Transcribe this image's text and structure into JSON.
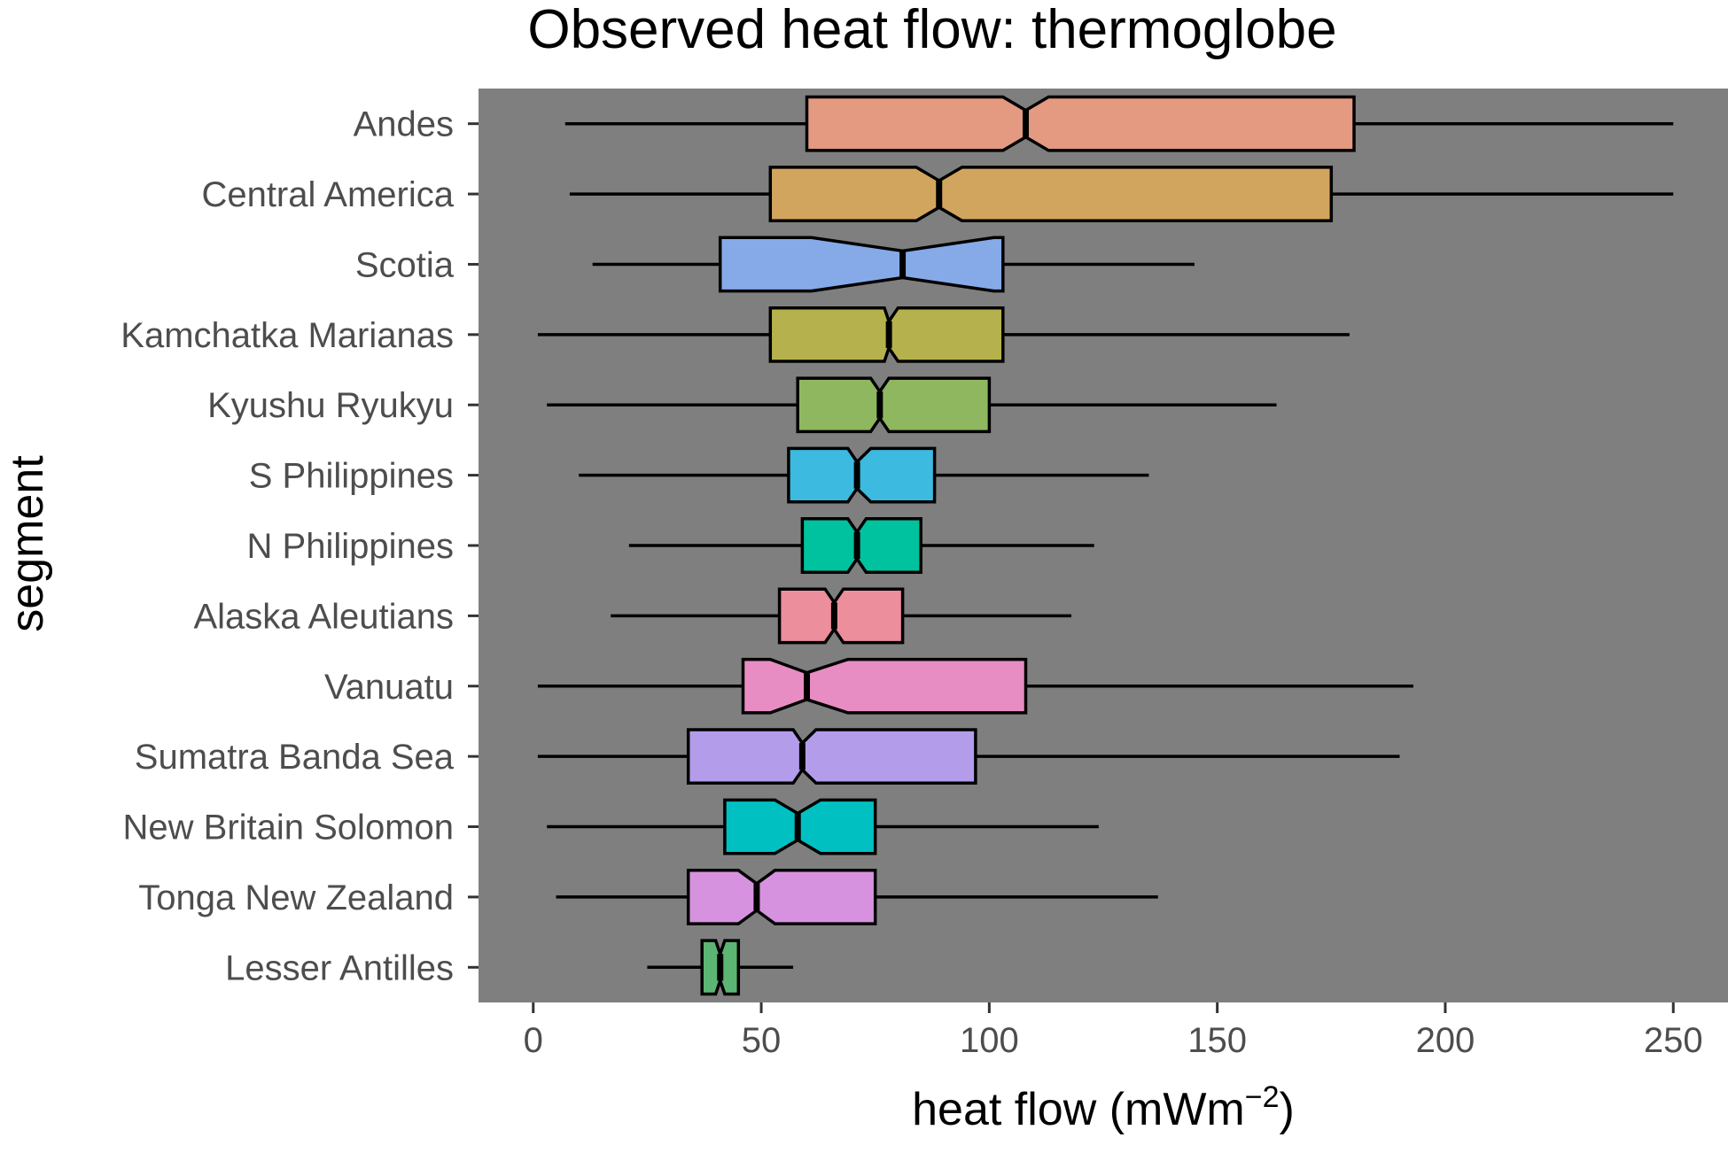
{
  "chart_data": {
    "type": "boxplot",
    "orientation": "horizontal",
    "notched": true,
    "title": "Observed heat flow: thermoglobe",
    "xlabel": "heat flow (mWm",
    "xlabel_sup": "−2",
    "xlabel_close": ")",
    "ylabel": "segment",
    "xlim": [
      -12,
      262
    ],
    "xticks": [
      0,
      50,
      100,
      150,
      200,
      250
    ],
    "xtick_labels": [
      "0",
      "50",
      "100",
      "150",
      "200",
      "250"
    ],
    "grid": false,
    "panel_background": "#7f7f7f",
    "categories": [
      "Andes",
      "Central America",
      "Scotia",
      "Kamchatka Marianas",
      "Kyushu Ryukyu",
      "S Philippines",
      "N Philippines",
      "Alaska Aleutians",
      "Vanuatu",
      "Sumatra Banda Sea",
      "New Britain Solomon",
      "Tonga New Zealand",
      "Lesser Antilles"
    ],
    "boxes": [
      {
        "segment": "Andes",
        "whisker_low": 7,
        "q1": 60,
        "notch_low": 103,
        "median": 108,
        "notch_high": 113,
        "q3": 180,
        "whisker_high": 250,
        "color": "#e39a80"
      },
      {
        "segment": "Central America",
        "whisker_low": 8,
        "q1": 52,
        "notch_low": 84,
        "median": 89,
        "notch_high": 94,
        "q3": 175,
        "whisker_high": 250,
        "color": "#d2a55f"
      },
      {
        "segment": "Scotia",
        "whisker_low": 13,
        "q1": 41,
        "notch_low": 61,
        "median": 81,
        "notch_high": 101,
        "q3": 103,
        "whisker_high": 145,
        "color": "#86a9e8"
      },
      {
        "segment": "Kamchatka Marianas",
        "whisker_low": 1,
        "q1": 52,
        "notch_low": 77,
        "median": 78,
        "notch_high": 80,
        "q3": 103,
        "whisker_high": 179,
        "color": "#b5b24d"
      },
      {
        "segment": "Kyushu Ryukyu",
        "whisker_low": 3,
        "q1": 58,
        "notch_low": 74,
        "median": 76,
        "notch_high": 78,
        "q3": 100,
        "whisker_high": 163,
        "color": "#8fb760"
      },
      {
        "segment": "S Philippines",
        "whisker_low": 10,
        "q1": 56,
        "notch_low": 69,
        "median": 71,
        "notch_high": 74,
        "q3": 88,
        "whisker_high": 135,
        "color": "#3dbadf"
      },
      {
        "segment": "N Philippines",
        "whisker_low": 21,
        "q1": 59,
        "notch_low": 69,
        "median": 71,
        "notch_high": 73,
        "q3": 85,
        "whisker_high": 123,
        "color": "#00c29e"
      },
      {
        "segment": "Alaska Aleutians",
        "whisker_low": 17,
        "q1": 54,
        "notch_low": 64,
        "median": 66,
        "notch_high": 68,
        "q3": 81,
        "whisker_high": 118,
        "color": "#ec8e9c"
      },
      {
        "segment": "Vanuatu",
        "whisker_low": 1,
        "q1": 46,
        "notch_low": 52,
        "median": 60,
        "notch_high": 69,
        "q3": 108,
        "whisker_high": 193,
        "color": "#e88dc3"
      },
      {
        "segment": "Sumatra Banda Sea",
        "whisker_low": 1,
        "q1": 34,
        "notch_low": 57,
        "median": 59,
        "notch_high": 62,
        "q3": 97,
        "whisker_high": 190,
        "color": "#b39deb"
      },
      {
        "segment": "New Britain Solomon",
        "whisker_low": 3,
        "q1": 42,
        "notch_low": 53,
        "median": 58,
        "notch_high": 63,
        "q3": 75,
        "whisker_high": 124,
        "color": "#00c0c2"
      },
      {
        "segment": "Tonga New Zealand",
        "whisker_low": 5,
        "q1": 34,
        "notch_low": 45,
        "median": 49,
        "notch_high": 53,
        "q3": 75,
        "whisker_high": 137,
        "color": "#d792df"
      },
      {
        "segment": "Lesser Antilles",
        "whisker_low": 25,
        "q1": 37,
        "notch_low": 40,
        "median": 41,
        "notch_high": 42,
        "q3": 45,
        "whisker_high": 57,
        "color": "#5cb572"
      }
    ]
  }
}
